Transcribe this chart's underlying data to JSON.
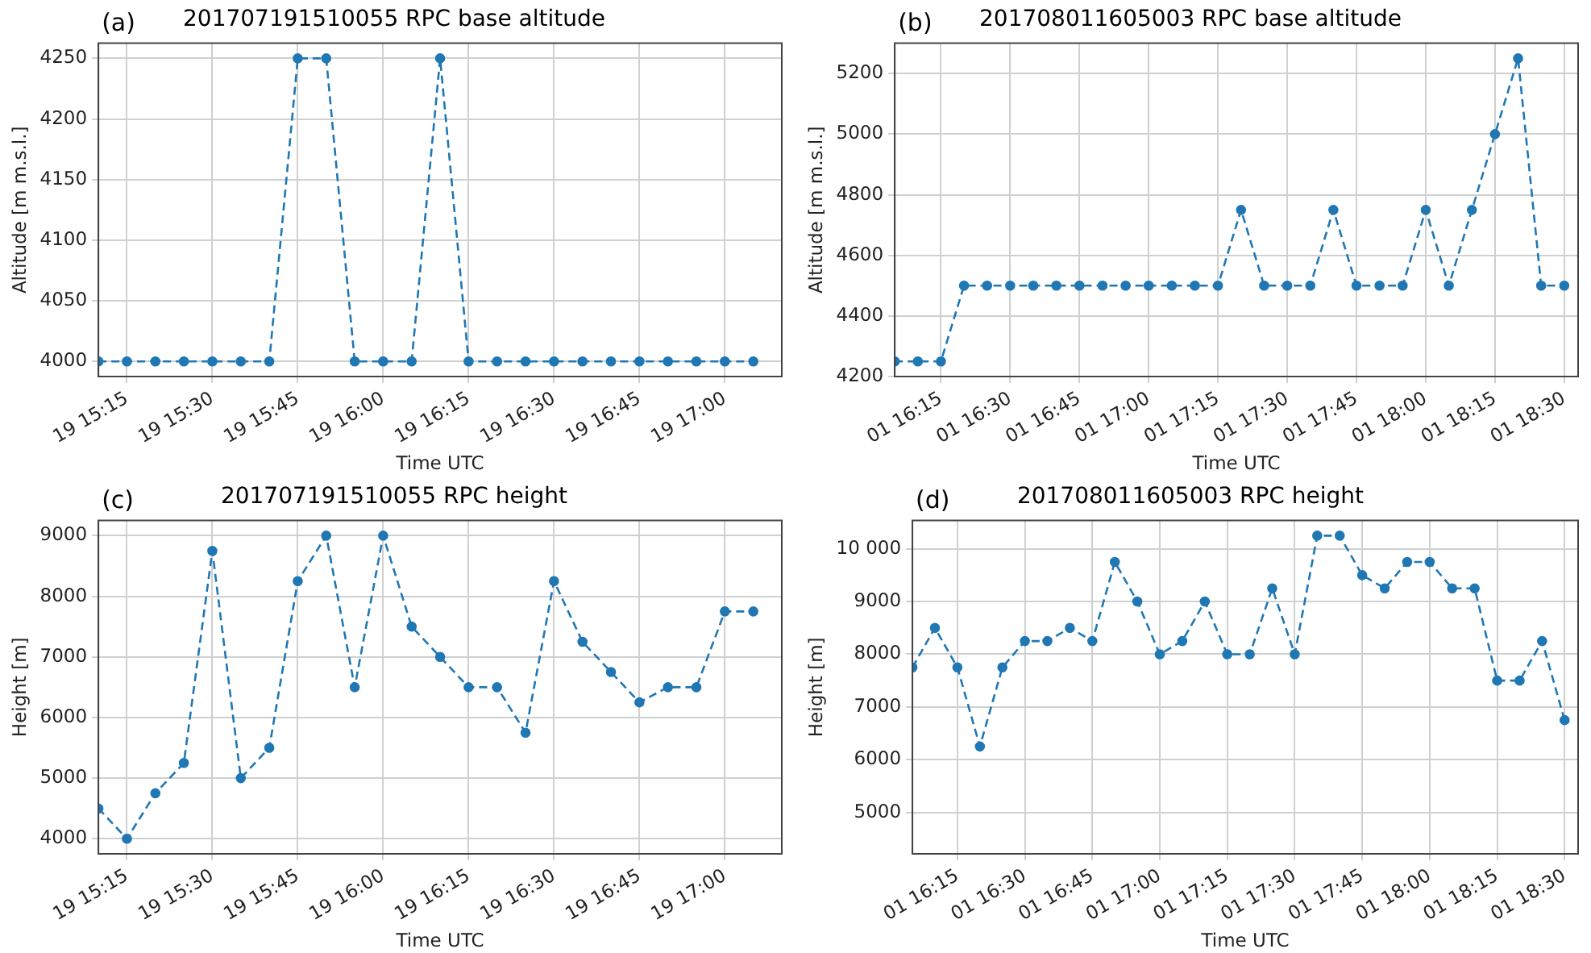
{
  "chart_data": [
    {
      "type": "line",
      "title": "201707191510055 RPC base altitude",
      "xlabel": "Time UTC",
      "ylabel": "Altitude [m m.s.l.]",
      "annotations": [
        "(a)"
      ],
      "x": [
        "2017-07-19T15:10",
        "2017-07-19T15:15",
        "2017-07-19T15:20",
        "2017-07-19T15:25",
        "2017-07-19T15:30",
        "2017-07-19T15:35",
        "2017-07-19T15:40",
        "2017-07-19T15:45",
        "2017-07-19T15:50",
        "2017-07-19T15:55",
        "2017-07-19T16:00",
        "2017-07-19T16:05",
        "2017-07-19T16:10",
        "2017-07-19T16:15",
        "2017-07-19T16:20",
        "2017-07-19T16:25",
        "2017-07-19T16:30",
        "2017-07-19T16:35",
        "2017-07-19T16:40",
        "2017-07-19T16:45",
        "2017-07-19T16:50",
        "2017-07-19T16:55",
        "2017-07-19T17:00",
        "2017-07-19T17:05"
      ],
      "series": [
        {
          "color": "#1f77b4",
          "values": [
            4000,
            4000,
            4000,
            4000,
            4000,
            4000,
            4000,
            4250,
            4250,
            4000,
            4000,
            4000,
            4250,
            4000,
            4000,
            4000,
            4000,
            4000,
            4000,
            4000,
            4000,
            4000,
            4000,
            4000
          ]
        }
      ],
      "xlim": [
        "2017-07-19T15:10",
        "2017-07-19T17:10"
      ],
      "xticks": [
        {
          "value": "2017-07-19T15:15",
          "label": "19 15:15"
        },
        {
          "value": "2017-07-19T15:30",
          "label": "19 15:30"
        },
        {
          "value": "2017-07-19T15:45",
          "label": "19 15:45"
        },
        {
          "value": "2017-07-19T16:00",
          "label": "19 16:00"
        },
        {
          "value": "2017-07-19T16:15",
          "label": "19 16:15"
        },
        {
          "value": "2017-07-19T16:30",
          "label": "19 16:30"
        },
        {
          "value": "2017-07-19T16:45",
          "label": "19 16:45"
        },
        {
          "value": "2017-07-19T17:00",
          "label": "19 17:00"
        }
      ],
      "ylim": [
        3987.5,
        4262.5
      ],
      "yticks": [
        4000,
        4050,
        4100,
        4150,
        4200,
        4250
      ],
      "grid": true,
      "marker": "circle",
      "line_style": "dashed"
    },
    {
      "type": "line",
      "title": "201708011605003 RPC base altitude",
      "xlabel": "Time UTC",
      "ylabel": "Altitude [m m.s.l.]",
      "annotations": [
        "(b)"
      ],
      "x": [
        "2017-08-01T16:05",
        "2017-08-01T16:10",
        "2017-08-01T16:15",
        "2017-08-01T16:20",
        "2017-08-01T16:25",
        "2017-08-01T16:30",
        "2017-08-01T16:35",
        "2017-08-01T16:40",
        "2017-08-01T16:45",
        "2017-08-01T16:50",
        "2017-08-01T16:55",
        "2017-08-01T17:00",
        "2017-08-01T17:05",
        "2017-08-01T17:10",
        "2017-08-01T17:15",
        "2017-08-01T17:20",
        "2017-08-01T17:25",
        "2017-08-01T17:30",
        "2017-08-01T17:35",
        "2017-08-01T17:40",
        "2017-08-01T17:45",
        "2017-08-01T17:50",
        "2017-08-01T17:55",
        "2017-08-01T18:00",
        "2017-08-01T18:05",
        "2017-08-01T18:10",
        "2017-08-01T18:15",
        "2017-08-01T18:20",
        "2017-08-01T18:25",
        "2017-08-01T18:30"
      ],
      "series": [
        {
          "color": "#1f77b4",
          "values": [
            4250,
            4250,
            4250,
            4500,
            4500,
            4500,
            4500,
            4500,
            4500,
            4500,
            4500,
            4500,
            4500,
            4500,
            4500,
            4750,
            4500,
            4500,
            4500,
            4750,
            4500,
            4500,
            4500,
            4750,
            4500,
            4750,
            5000,
            5250,
            4500,
            4500
          ]
        }
      ],
      "xlim": [
        "2017-08-01T16:05",
        "2017-08-01T18:33"
      ],
      "xticks": [
        {
          "value": "2017-08-01T16:15",
          "label": "01 16:15"
        },
        {
          "value": "2017-08-01T16:30",
          "label": "01 16:30"
        },
        {
          "value": "2017-08-01T16:45",
          "label": "01 16:45"
        },
        {
          "value": "2017-08-01T17:00",
          "label": "01 17:00"
        },
        {
          "value": "2017-08-01T17:15",
          "label": "01 17:15"
        },
        {
          "value": "2017-08-01T17:30",
          "label": "01 17:30"
        },
        {
          "value": "2017-08-01T17:45",
          "label": "01 17:45"
        },
        {
          "value": "2017-08-01T18:00",
          "label": "01 18:00"
        },
        {
          "value": "2017-08-01T18:15",
          "label": "01 18:15"
        },
        {
          "value": "2017-08-01T18:30",
          "label": "01 18:30"
        }
      ],
      "ylim": [
        4200,
        5300
      ],
      "yticks": [
        4200,
        4400,
        4600,
        4800,
        5000,
        5200
      ],
      "grid": true,
      "marker": "circle",
      "line_style": "dashed"
    },
    {
      "type": "line",
      "title": "201707191510055 RPC height",
      "xlabel": "Time UTC",
      "ylabel": "Height [m]",
      "annotations": [
        "(c)"
      ],
      "x": [
        "2017-07-19T15:10",
        "2017-07-19T15:15",
        "2017-07-19T15:20",
        "2017-07-19T15:25",
        "2017-07-19T15:30",
        "2017-07-19T15:35",
        "2017-07-19T15:40",
        "2017-07-19T15:45",
        "2017-07-19T15:50",
        "2017-07-19T15:55",
        "2017-07-19T16:00",
        "2017-07-19T16:05",
        "2017-07-19T16:10",
        "2017-07-19T16:15",
        "2017-07-19T16:20",
        "2017-07-19T16:25",
        "2017-07-19T16:30",
        "2017-07-19T16:35",
        "2017-07-19T16:40",
        "2017-07-19T16:45",
        "2017-07-19T16:50",
        "2017-07-19T16:55",
        "2017-07-19T17:00",
        "2017-07-19T17:05"
      ],
      "series": [
        {
          "color": "#1f77b4",
          "values": [
            4500,
            4000,
            4750,
            5250,
            8750,
            5000,
            5500,
            8250,
            9000,
            6500,
            9000,
            7500,
            7000,
            6500,
            6500,
            5750,
            8250,
            7250,
            6750,
            6250,
            6500,
            6500,
            7750,
            7750
          ]
        }
      ],
      "xlim": [
        "2017-07-19T15:10",
        "2017-07-19T17:10"
      ],
      "xticks": [
        {
          "value": "2017-07-19T15:15",
          "label": "19 15:15"
        },
        {
          "value": "2017-07-19T15:30",
          "label": "19 15:30"
        },
        {
          "value": "2017-07-19T15:45",
          "label": "19 15:45"
        },
        {
          "value": "2017-07-19T16:00",
          "label": "19 16:00"
        },
        {
          "value": "2017-07-19T16:15",
          "label": "19 16:15"
        },
        {
          "value": "2017-07-19T16:30",
          "label": "19 16:30"
        },
        {
          "value": "2017-07-19T16:45",
          "label": "19 16:45"
        },
        {
          "value": "2017-07-19T17:00",
          "label": "19 17:00"
        }
      ],
      "ylim": [
        3750,
        9250
      ],
      "yticks": [
        4000,
        5000,
        6000,
        7000,
        8000,
        9000
      ],
      "grid": true,
      "marker": "circle",
      "line_style": "dashed"
    },
    {
      "type": "line",
      "title": "201708011605003 RPC height",
      "xlabel": "Time UTC",
      "ylabel": "Height [m]",
      "annotations": [
        "(d)"
      ],
      "x": [
        "2017-08-01T16:05",
        "2017-08-01T16:10",
        "2017-08-01T16:15",
        "2017-08-01T16:20",
        "2017-08-01T16:25",
        "2017-08-01T16:30",
        "2017-08-01T16:35",
        "2017-08-01T16:40",
        "2017-08-01T16:45",
        "2017-08-01T16:50",
        "2017-08-01T16:55",
        "2017-08-01T17:00",
        "2017-08-01T17:05",
        "2017-08-01T17:10",
        "2017-08-01T17:15",
        "2017-08-01T17:20",
        "2017-08-01T17:25",
        "2017-08-01T17:30",
        "2017-08-01T17:35",
        "2017-08-01T17:40",
        "2017-08-01T17:45",
        "2017-08-01T17:50",
        "2017-08-01T17:55",
        "2017-08-01T18:00",
        "2017-08-01T18:05",
        "2017-08-01T18:10",
        "2017-08-01T18:15",
        "2017-08-01T18:20",
        "2017-08-01T18:25",
        "2017-08-01T18:30"
      ],
      "series": [
        {
          "color": "#1f77b4",
          "values": [
            7750,
            8500,
            7750,
            6250,
            7750,
            8250,
            8250,
            8500,
            8250,
            9750,
            9000,
            8000,
            8250,
            9000,
            8000,
            8000,
            9250,
            8000,
            10250,
            10250,
            9500,
            9250,
            9750,
            9750,
            9250,
            9250,
            7500,
            7500,
            8250,
            6750
          ]
        }
      ],
      "xlim": [
        "2017-08-01T16:05",
        "2017-08-01T18:33"
      ],
      "xticks": [
        {
          "value": "2017-08-01T16:15",
          "label": "01 16:15"
        },
        {
          "value": "2017-08-01T16:30",
          "label": "01 16:30"
        },
        {
          "value": "2017-08-01T16:45",
          "label": "01 16:45"
        },
        {
          "value": "2017-08-01T17:00",
          "label": "01 17:00"
        },
        {
          "value": "2017-08-01T17:15",
          "label": "01 17:15"
        },
        {
          "value": "2017-08-01T17:30",
          "label": "01 17:30"
        },
        {
          "value": "2017-08-01T17:45",
          "label": "01 17:45"
        },
        {
          "value": "2017-08-01T18:00",
          "label": "01 18:00"
        },
        {
          "value": "2017-08-01T18:15",
          "label": "01 18:15"
        },
        {
          "value": "2017-08-01T18:30",
          "label": "01 18:30"
        }
      ],
      "ylim": [
        4212,
        10537
      ],
      "yticks": [
        5000,
        6000,
        7000,
        8000,
        9000,
        {
          "value": 10000,
          "label": "10 000"
        }
      ],
      "grid": true,
      "marker": "circle",
      "line_style": "dashed"
    }
  ]
}
